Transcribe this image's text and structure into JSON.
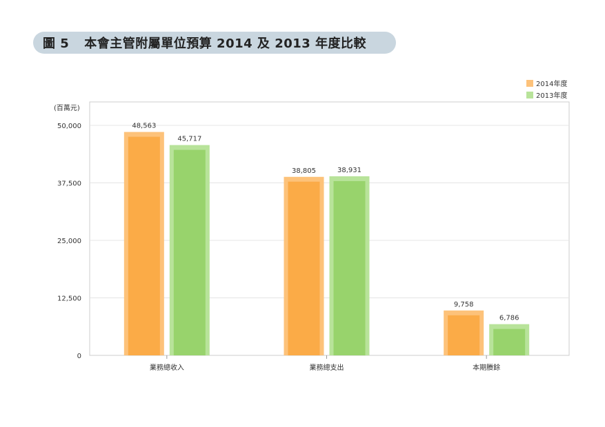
{
  "title": {
    "label": "圖 5",
    "text": "本會主管附屬單位預算 2014 及 2013 年度比較"
  },
  "chart_data": {
    "type": "bar",
    "title": "圖 5　本會主管附屬單位預算 2014 及 2013 年度比較",
    "ylabel": "(百萬元)",
    "categories": [
      "業務總收入",
      "業務總支出",
      "本期賸餘"
    ],
    "series": [
      {
        "name": "2014年度",
        "color": "#fbab47",
        "light": "#fdc27a",
        "values": [
          48563,
          38805,
          9758
        ],
        "labels": [
          "48,563",
          "38,805",
          "9,758"
        ]
      },
      {
        "name": "2013年度",
        "color": "#98d36c",
        "light": "#b8e39a",
        "values": [
          45717,
          38931,
          6786
        ],
        "labels": [
          "45,717",
          "38,931",
          "6,786"
        ]
      }
    ],
    "yticks": [
      0,
      12500,
      25000,
      37500,
      50000
    ],
    "ytick_labels": [
      "0",
      "12,500",
      "25,000",
      "37,500",
      "50,000"
    ],
    "ylim": [
      0,
      50000
    ],
    "grid": true,
    "legend": "top-right"
  }
}
